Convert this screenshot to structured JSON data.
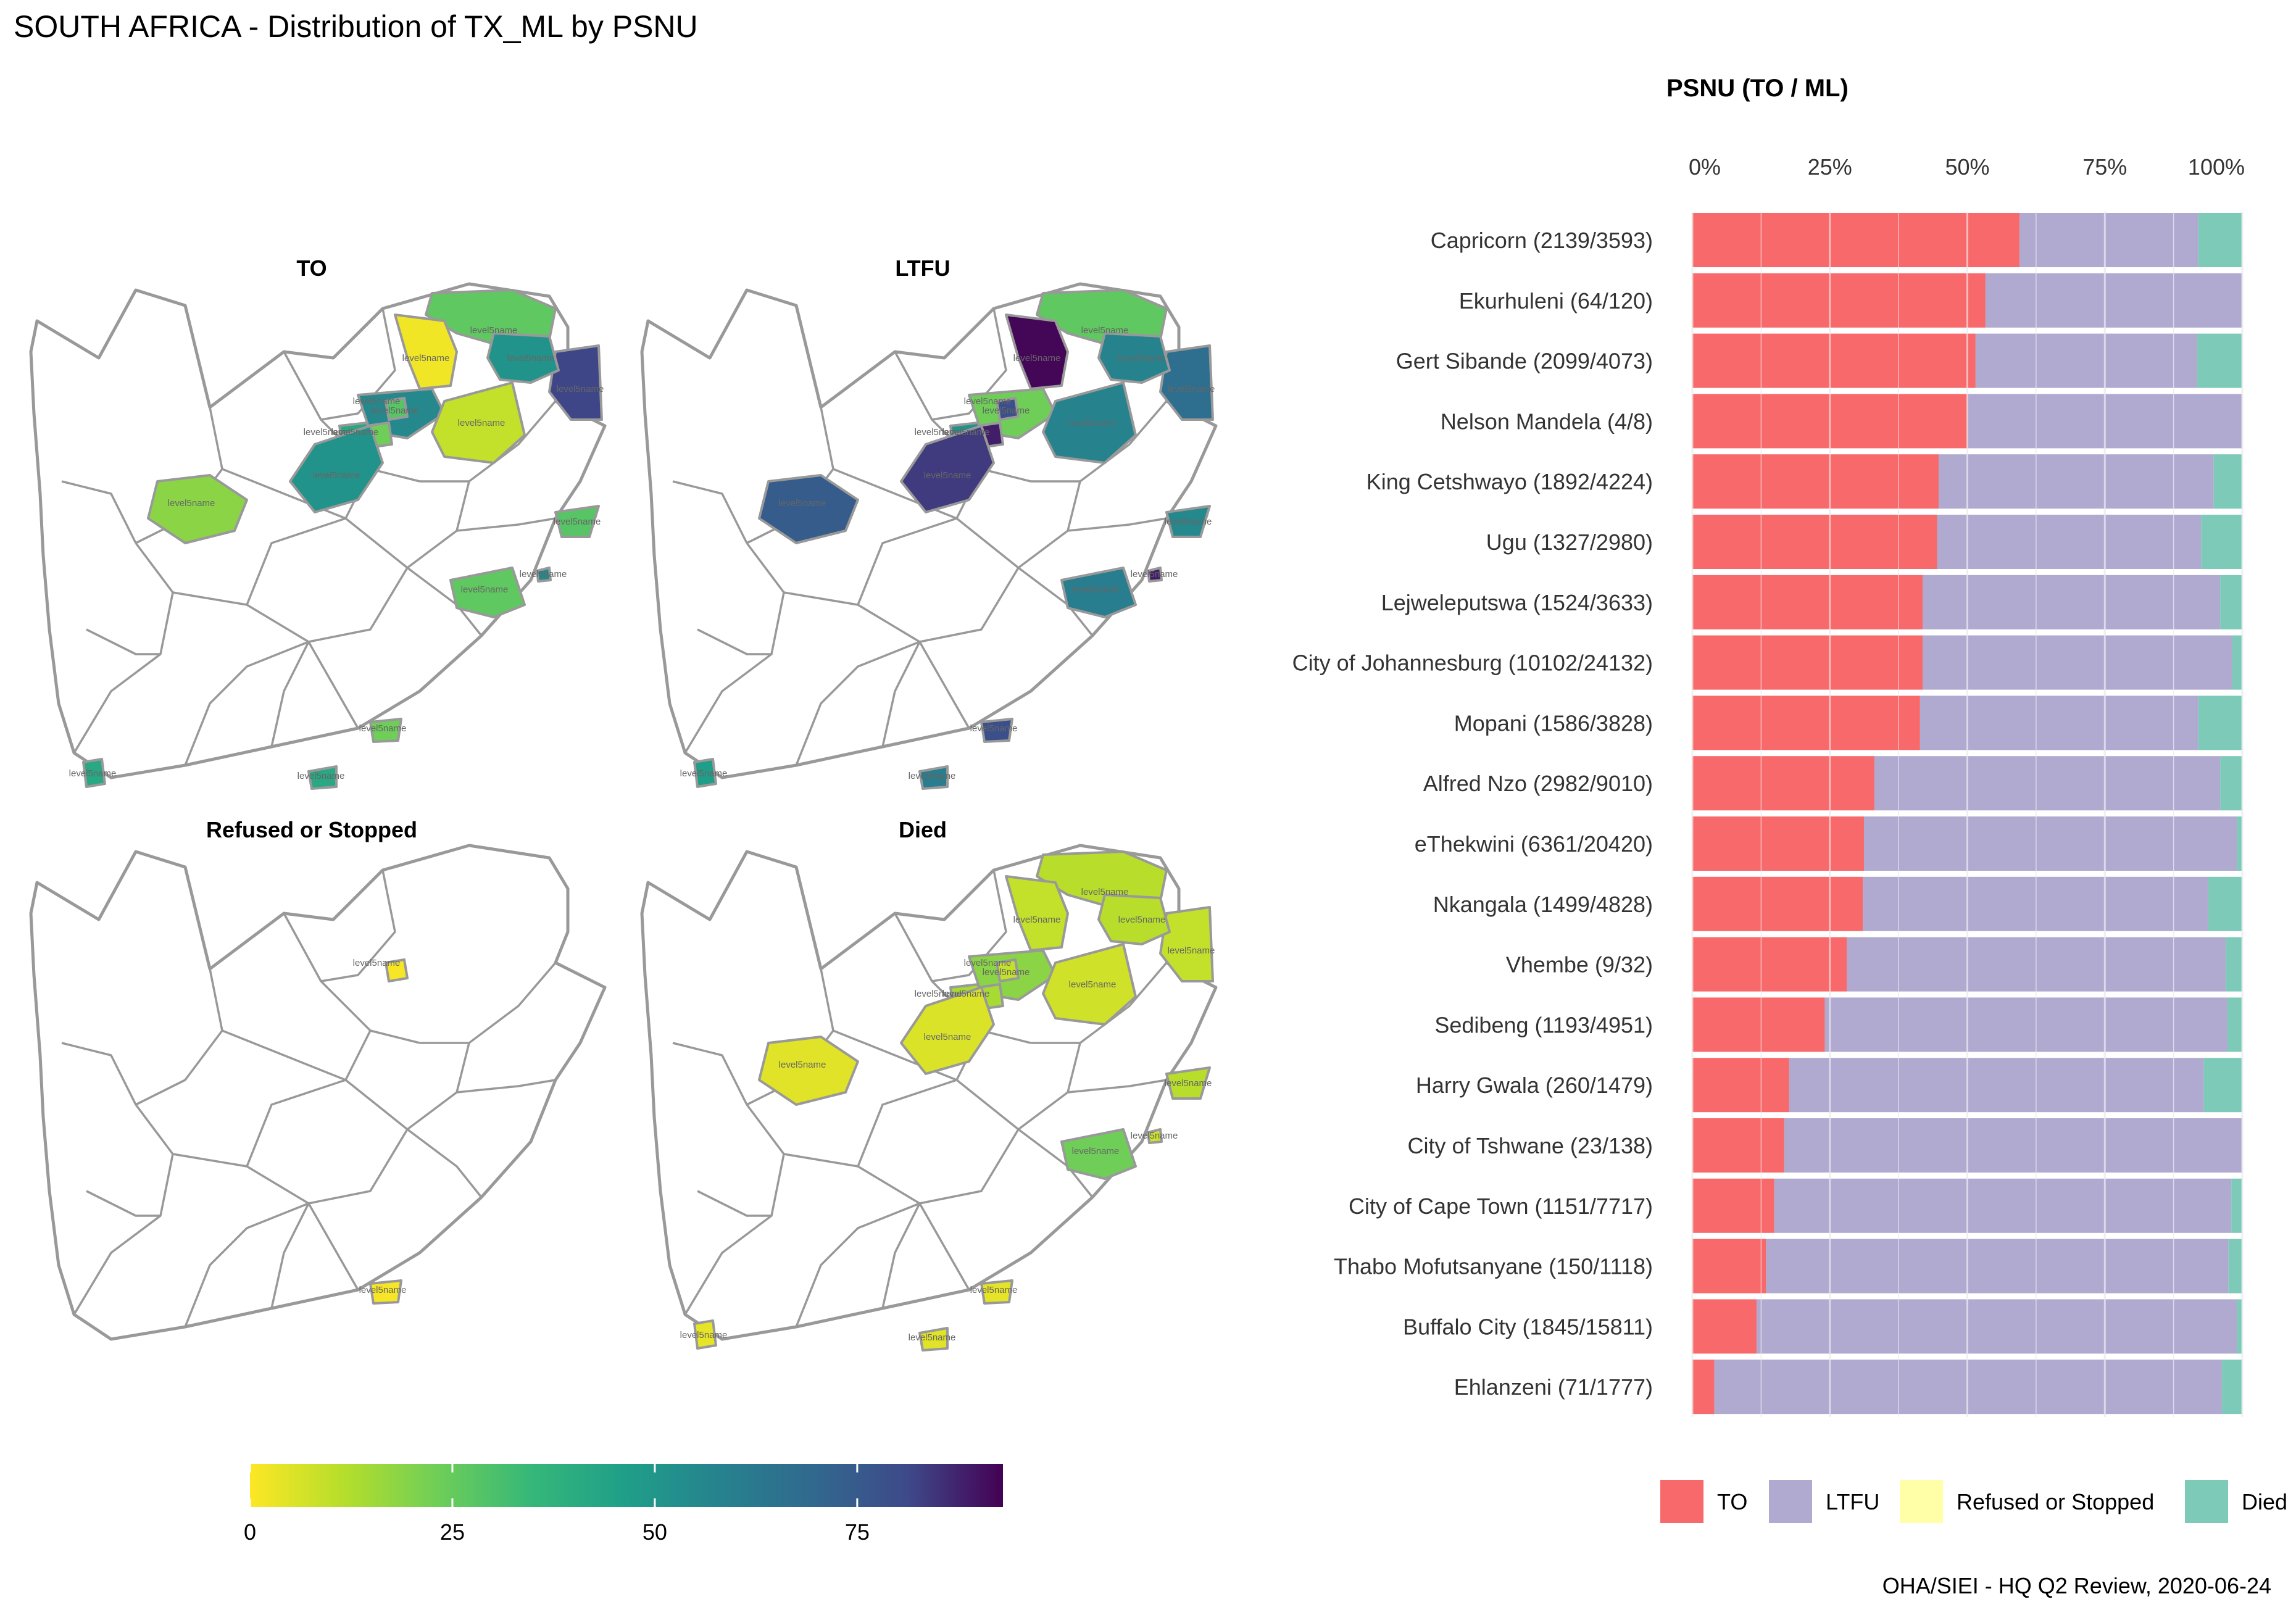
{
  "page": {
    "title": "SOUTH AFRICA - Distribution of TX_ML by PSNU",
    "caption": "OHA/SIEI - HQ Q2 Review, 2020-06-24"
  },
  "maps": {
    "panels": [
      {
        "title": "TO",
        "district_fill": [
          0.28,
          0.88,
          0.55,
          0.02,
          0.6,
          0.1,
          0.3,
          0.25,
          0.45,
          0.55,
          0.2,
          0.3,
          0.28,
          0.6,
          0.25,
          0.45,
          0.45
        ]
      },
      {
        "title": "LTFU",
        "district_fill": [
          0.28,
          0.72,
          0.62,
          0.99,
          0.25,
          0.62,
          0.85,
          0.95,
          0.55,
          0.9,
          0.8,
          0.6,
          0.65,
          0.95,
          0.85,
          0.65,
          0.5
        ]
      },
      {
        "title": "Refused or Stopped",
        "district_fill": [
          null,
          null,
          null,
          null,
          null,
          null,
          0.01,
          null,
          null,
          null,
          null,
          null,
          null,
          null,
          0.01,
          null,
          null
        ]
      },
      {
        "title": "Died",
        "district_fill": [
          0.12,
          0.1,
          0.12,
          0.1,
          0.2,
          0.08,
          0.1,
          0.15,
          0.15,
          0.06,
          0.05,
          0.12,
          0.25,
          0.08,
          0.04,
          0.05,
          0.04
        ]
      }
    ],
    "district_label": "level5name",
    "colorbar": {
      "scale": "viridis-reversed",
      "min": 0,
      "max": 93,
      "ticks": [
        0,
        25,
        50,
        75
      ],
      "tick_labels": [
        "0",
        "25",
        "50",
        "75"
      ]
    },
    "colors": {
      "border": "#999999",
      "empty_fill": "#ffffff"
    }
  },
  "chart_data": {
    "type": "bar",
    "orientation": "horizontal-stacked-100",
    "title": "PSNU (TO / ML)",
    "xlabel": "",
    "ylabel": "",
    "xlim": [
      0,
      100
    ],
    "x_ticks": [
      0,
      25,
      50,
      75,
      100
    ],
    "x_tick_labels": [
      "0%",
      "25%",
      "50%",
      "75%",
      "100%"
    ],
    "grid": true,
    "legend_position": "bottom-right",
    "categories": [
      "Capricorn (2139/3593)",
      "Ekurhuleni (64/120)",
      "Gert Sibande (2099/4073)",
      "Nelson Mandela (4/8)",
      "King Cetshwayo (1892/4224)",
      "Ugu (1327/2980)",
      "Lejweleputswa (1524/3633)",
      "City of Johannesburg (10102/24132)",
      "Mopani (1586/3828)",
      "Alfred Nzo (2982/9010)",
      "eThekwini (6361/20420)",
      "Nkangala (1499/4828)",
      "Vhembe (9/32)",
      "Sedibeng (1193/4951)",
      "Harry Gwala (260/1479)",
      "City of Tshwane (23/138)",
      "City of Cape Town (1151/7717)",
      "Thabo Mofutsanyane (150/1118)",
      "Buffalo City (1845/15811)",
      "Ehlanzeni (71/1777)"
    ],
    "series": [
      {
        "name": "TO",
        "color": "#F8696B",
        "values": [
          59.5,
          53.3,
          51.5,
          50.0,
          44.8,
          44.5,
          41.9,
          41.9,
          41.4,
          33.1,
          31.2,
          31.0,
          28.1,
          24.1,
          17.6,
          16.7,
          14.9,
          13.4,
          11.7,
          4.0
        ]
      },
      {
        "name": "LTFU",
        "color": "#B0AAD0",
        "values": [
          32.5,
          46.7,
          40.3,
          50.0,
          50.0,
          48.0,
          54.1,
          56.3,
          50.6,
          62.9,
          67.8,
          62.8,
          68.9,
          73.2,
          75.4,
          83.3,
          83.1,
          84.1,
          87.3,
          92.3
        ]
      },
      {
        "name": "Refused or Stopped",
        "color": "#FFFFA8",
        "values": [
          0.0,
          0.0,
          0.0,
          0.0,
          0.0,
          0.0,
          0.0,
          0.0,
          0.0,
          0.0,
          0.0,
          0.0,
          0.0,
          0.0,
          0.0,
          0.0,
          0.0,
          0.0,
          0.0,
          0.0
        ]
      },
      {
        "name": "Died",
        "color": "#7ECAB8",
        "values": [
          8.0,
          0.0,
          8.2,
          0.0,
          5.2,
          7.5,
          4.0,
          1.8,
          8.0,
          4.0,
          1.0,
          6.2,
          3.0,
          2.7,
          7.0,
          0.0,
          2.0,
          2.5,
          1.0,
          3.7
        ]
      }
    ]
  }
}
